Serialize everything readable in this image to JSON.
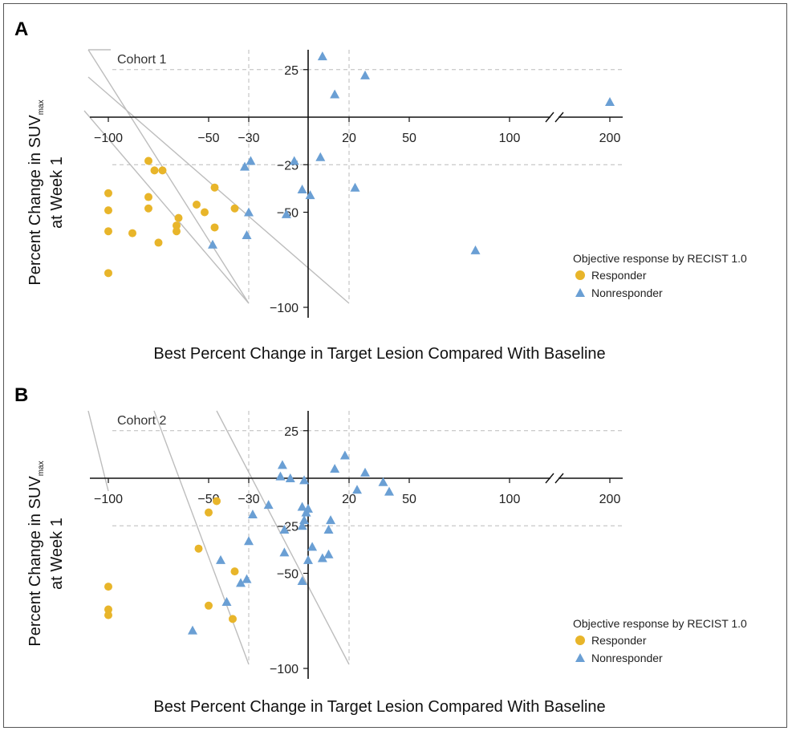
{
  "panels": [
    {
      "letter": "A",
      "cohort_label": "Cohort 1",
      "ylabel_line1": "Percent Change in SUV",
      "ylabel_sub": "max",
      "ylabel_line2": "at Week 1",
      "xlabel": "Best Percent Change in Target Lesion Compared With Baseline",
      "legend_title": "Objective response by RECIST  1.0",
      "legend_items": [
        "Responder",
        "Nonresponder"
      ]
    },
    {
      "letter": "B",
      "cohort_label": "Cohort 2",
      "ylabel_line1": "Percent Change in SUV",
      "ylabel_sub": "max",
      "ylabel_line2": "at Week 1",
      "xlabel": "Best Percent Change in Target Lesion Compared With Baseline",
      "legend_title": "Objective response by RECIST  1.0",
      "legend_items": [
        "Responder",
        "Nonresponder"
      ]
    }
  ],
  "colors": {
    "responder": "#e8b52a",
    "nonresponder": "#6a9fd4",
    "axis": "#111111",
    "ref_line": "#bbbbbb",
    "diag_line": "#bdbdbd"
  },
  "chart_data": [
    {
      "type": "scatter",
      "title": "Cohort 1",
      "x_ticks": [
        -100,
        -50,
        -30,
        20,
        50,
        100,
        200
      ],
      "y_ticks": [
        25,
        -25,
        -50,
        -100
      ],
      "xlim": [
        -100,
        200
      ],
      "ylim": [
        -100,
        25
      ],
      "axis_break": "between 100 and 200 on x",
      "reference_lines": {
        "x": [
          -30,
          20
        ],
        "y": [
          25,
          -25
        ]
      },
      "series": [
        {
          "name": "Responder",
          "marker": "circle",
          "points": [
            [
              -80,
              -23
            ],
            [
              -77,
              -28
            ],
            [
              -73,
              -28
            ],
            [
              -100,
              -40
            ],
            [
              -80,
              -42
            ],
            [
              -47,
              -37
            ],
            [
              -100,
              -49
            ],
            [
              -80,
              -48
            ],
            [
              -56,
              -46
            ],
            [
              -37,
              -48
            ],
            [
              -52,
              -50
            ],
            [
              -65,
              -53
            ],
            [
              -100,
              -60
            ],
            [
              -88,
              -61
            ],
            [
              -66,
              -57
            ],
            [
              -47,
              -58
            ],
            [
              -66,
              -60
            ],
            [
              -75,
              -66
            ],
            [
              -100,
              -82
            ]
          ]
        },
        {
          "name": "Nonresponder",
          "marker": "triangle",
          "points": [
            [
              7,
              32
            ],
            [
              28,
              22
            ],
            [
              13,
              12
            ],
            [
              200,
              8
            ],
            [
              -29,
              -23
            ],
            [
              -32,
              -26
            ],
            [
              6,
              -21
            ],
            [
              -7,
              -23
            ],
            [
              -3,
              -38
            ],
            [
              1,
              -41
            ],
            [
              23,
              -37
            ],
            [
              -30,
              -50
            ],
            [
              -11,
              -51
            ],
            [
              -31,
              -62
            ],
            [
              -48,
              -67
            ],
            [
              83,
              -70
            ]
          ]
        }
      ]
    },
    {
      "type": "scatter",
      "title": "Cohort 2",
      "x_ticks": [
        -100,
        -50,
        -30,
        20,
        50,
        100,
        200
      ],
      "y_ticks": [
        25,
        -25,
        -50,
        -100
      ],
      "xlim": [
        -100,
        200
      ],
      "ylim": [
        -100,
        25
      ],
      "axis_break": "between 100 and 200 on x",
      "reference_lines": {
        "x": [
          -30,
          20
        ],
        "y": [
          25,
          -25
        ]
      },
      "series": [
        {
          "name": "Responder",
          "marker": "circle",
          "points": [
            [
              -46,
              -12
            ],
            [
              -50,
              -18
            ],
            [
              -55,
              -37
            ],
            [
              -37,
              -49
            ],
            [
              -100,
              -57
            ],
            [
              -50,
              -67
            ],
            [
              -100,
              -69
            ],
            [
              -100,
              -72
            ],
            [
              -38,
              -74
            ]
          ]
        },
        {
          "name": "Nonresponder",
          "marker": "triangle",
          "points": [
            [
              18,
              12
            ],
            [
              -13,
              7
            ],
            [
              13,
              5
            ],
            [
              28,
              3
            ],
            [
              -14,
              1
            ],
            [
              -9,
              0
            ],
            [
              -2,
              -1
            ],
            [
              37,
              -2
            ],
            [
              24,
              -6
            ],
            [
              40,
              -7
            ],
            [
              -20,
              -14
            ],
            [
              -3,
              -15
            ],
            [
              0,
              -16
            ],
            [
              -1,
              -18
            ],
            [
              -28,
              -19
            ],
            [
              -2,
              -22
            ],
            [
              -3,
              -25
            ],
            [
              -12,
              -27
            ],
            [
              11,
              -22
            ],
            [
              10,
              -27
            ],
            [
              -30,
              -33
            ],
            [
              2,
              -36
            ],
            [
              -12,
              -39
            ],
            [
              10,
              -40
            ],
            [
              7,
              -42
            ],
            [
              0,
              -43
            ],
            [
              -44,
              -43
            ],
            [
              -31,
              -53
            ],
            [
              -34,
              -55
            ],
            [
              -3,
              -54
            ],
            [
              -41,
              -65
            ],
            [
              -58,
              -80
            ]
          ]
        }
      ]
    }
  ]
}
